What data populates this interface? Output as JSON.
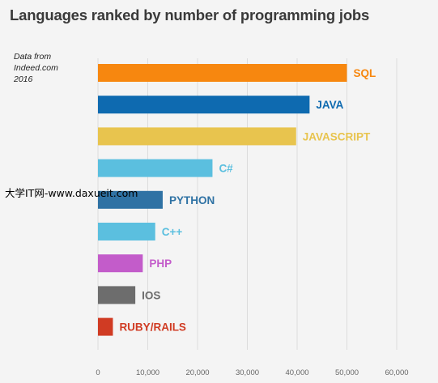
{
  "title": "Languages ranked by number of programming jobs",
  "source_note": [
    "Data from",
    "Indeed.com",
    "2016"
  ],
  "watermark": "大学IT网-www.daxueit.com",
  "chart_data": {
    "type": "bar",
    "orientation": "horizontal",
    "title": "Languages ranked by number of programming jobs",
    "categories": [
      "SQL",
      "JAVA",
      "JAVASCRIPT",
      "C#",
      "PYTHON",
      "C++",
      "PHP",
      "IOS",
      "RUBY/RAILS"
    ],
    "values": [
      50000,
      42500,
      39800,
      23000,
      13000,
      11500,
      9000,
      7500,
      3000
    ],
    "colors": [
      "#f7870f",
      "#0e6ab0",
      "#e8c44e",
      "#5bbfdf",
      "#2f72a4",
      "#5bbfdf",
      "#c35cca",
      "#6d6d6d",
      "#d03b23"
    ],
    "x_ticks": [
      "0",
      "10,000",
      "20,000",
      "30,000",
      "40,000",
      "50,000",
      "60,000"
    ],
    "xlim": [
      0,
      60000
    ],
    "grid": "vertical",
    "xlabel": "",
    "ylabel": ""
  }
}
